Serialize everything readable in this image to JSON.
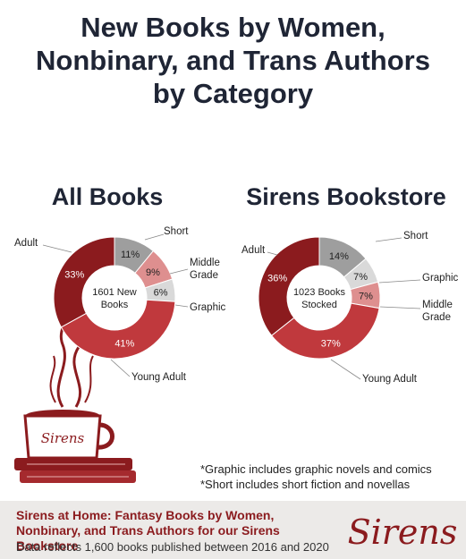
{
  "title_lines": [
    "New Books by Women,",
    "Nonbinary, and Trans Authors",
    "by Category"
  ],
  "chart_data": [
    {
      "type": "pie",
      "title": "All Books",
      "center_label": [
        "1601 New",
        "Books"
      ],
      "categories": [
        "Short",
        "Middle Grade",
        "Graphic",
        "Young Adult",
        "Adult"
      ],
      "values": [
        11,
        9,
        6,
        41,
        33
      ],
      "percent_labels": [
        "11%",
        "9%",
        "6%",
        "41%",
        "33%"
      ],
      "colors": [
        "#9e9e9e",
        "#de8f8f",
        "#d9d9d9",
        "#c0393d",
        "#8b1b1e"
      ]
    },
    {
      "type": "pie",
      "title": "Sirens Bookstore",
      "center_label": [
        "1023 Books",
        "Stocked"
      ],
      "categories": [
        "Short",
        "Graphic",
        "Middle Grade",
        "Young Adult",
        "Adult"
      ],
      "values": [
        14,
        7,
        7,
        37,
        36
      ],
      "percent_labels": [
        "14%",
        "7%",
        "7%",
        "37%",
        "36%"
      ],
      "colors": [
        "#9e9e9e",
        "#d9d9d9",
        "#de8f8f",
        "#c0393d",
        "#8b1b1e"
      ]
    }
  ],
  "notes": [
    "*Graphic includes graphic novels and comics",
    "*Short includes short fiction and novellas"
  ],
  "footer": {
    "title": "Sirens at Home: Fantasy Books by Women, Nonbinary, and Trans Authors for our Sirens Bookstore",
    "subtitle": "Data reflects 1,600 books published between 2016 and 2020"
  },
  "logo_text": "Sirens",
  "mug_text": "Sirens",
  "icons": [
    "mug-on-books-icon",
    "sirens-logo-icon"
  ]
}
